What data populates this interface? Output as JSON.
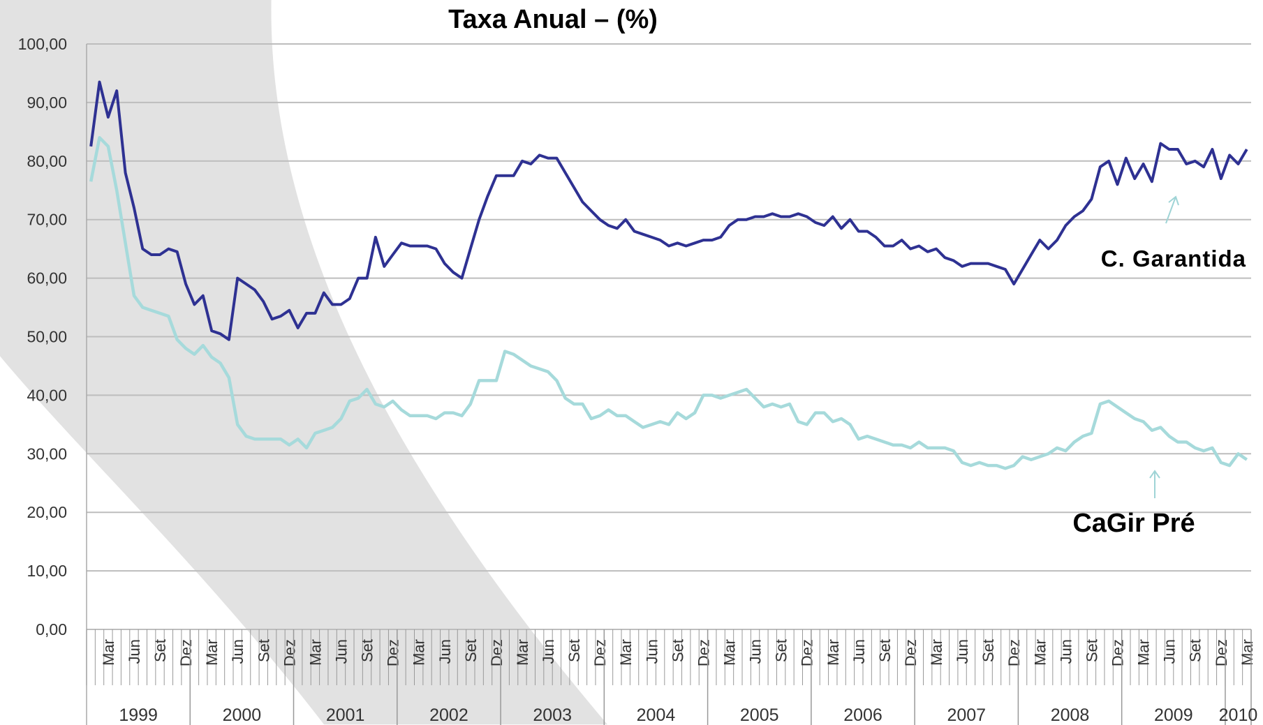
{
  "chart_data": {
    "type": "line",
    "title": "Taxa Anual  –  (%)",
    "categories": [
      null,
      null,
      "Mar",
      null,
      null,
      "Jun",
      null,
      null,
      "Set",
      null,
      null,
      "Dez",
      null,
      null,
      "Mar",
      null,
      null,
      "Jun",
      null,
      null,
      "Set",
      null,
      null,
      "Dez",
      null,
      null,
      "Mar",
      null,
      null,
      "Jun",
      null,
      null,
      "Set",
      null,
      null,
      "Dez",
      null,
      null,
      "Mar",
      null,
      null,
      "Jun",
      null,
      null,
      "Set",
      null,
      null,
      "Dez",
      null,
      null,
      "Mar",
      null,
      null,
      "Jun",
      null,
      null,
      "Set",
      null,
      null,
      "Dez",
      null,
      null,
      "Mar",
      null,
      null,
      "Jun",
      null,
      null,
      "Set",
      null,
      null,
      "Dez",
      null,
      null,
      "Mar",
      null,
      null,
      "Jun",
      null,
      null,
      "Set",
      null,
      null,
      "Dez",
      null,
      null,
      "Mar",
      null,
      null,
      "Jun",
      null,
      null,
      "Set",
      null,
      null,
      "Dez",
      null,
      null,
      "Mar",
      null,
      null,
      "Jun",
      null,
      null,
      "Set",
      null,
      null,
      "Dez",
      null,
      null,
      "Mar",
      null,
      null,
      "Jun",
      null,
      null,
      "Set",
      null,
      null,
      "Dez",
      null,
      null,
      "Mar",
      null,
      null,
      "Jun",
      null,
      null,
      "Set",
      null,
      null,
      "Dez",
      null,
      null,
      "Mar"
    ],
    "years": [
      "1999",
      "2000",
      "2001",
      "2002",
      "2003",
      "2004",
      "2005",
      "2006",
      "2007",
      "2008",
      "2009",
      "2010"
    ],
    "series": [
      {
        "name": "C. Garantida",
        "color": "#2e3192",
        "values": [
          82.5,
          93.5,
          87.5,
          92,
          78,
          72,
          65,
          64,
          64,
          65,
          64.5,
          59,
          55.5,
          57,
          51,
          50.5,
          49.5,
          60,
          59,
          58,
          56,
          53,
          53.5,
          54.5,
          51.5,
          54,
          54,
          57.5,
          55.5,
          55.5,
          56.5,
          60,
          60,
          67,
          62,
          64,
          66,
          65.5,
          65.5,
          65.5,
          65,
          62.5,
          61,
          60,
          65,
          70,
          74,
          77.5,
          77.5,
          77.5,
          80,
          79.5,
          81,
          80.5,
          80.5,
          78,
          75.5,
          73,
          71.5,
          70,
          69,
          68.5,
          70,
          68,
          67.5,
          67,
          66.5,
          65.5,
          66,
          65.5,
          66,
          66.5,
          66.5,
          67,
          69,
          70,
          70,
          70.5,
          70.5,
          71,
          70.5,
          70.5,
          71,
          70.5,
          69.5,
          69,
          70.5,
          68.5,
          70,
          68,
          68,
          67,
          65.5,
          65.5,
          66.5,
          65,
          65.5,
          64.5,
          65,
          63.5,
          63,
          62,
          62.5,
          62.5,
          62.5,
          62,
          61.5,
          59,
          61.5,
          64,
          66.5,
          65,
          66.5,
          69,
          70.5,
          71.5,
          73.5,
          79,
          80,
          76,
          80.5,
          77,
          79.5,
          76.5,
          83,
          82,
          82,
          79.5,
          80,
          79,
          82,
          77,
          81,
          79.5,
          82
        ]
      },
      {
        "name": "CaGir Pré",
        "color": "#a6dadb",
        "values": [
          76.5,
          84,
          82.5,
          75,
          66,
          57,
          55,
          54.5,
          54,
          53.5,
          49.5,
          48,
          47,
          48.5,
          46.5,
          45.5,
          43,
          35,
          33,
          32.5,
          32.5,
          32.5,
          32.5,
          31.5,
          32.5,
          31,
          33.5,
          34,
          34.5,
          36,
          39,
          39.5,
          41,
          38.5,
          38,
          39,
          37.5,
          36.5,
          36.5,
          36.5,
          36,
          37,
          37,
          36.5,
          38.5,
          42.5,
          42.5,
          42.5,
          47.5,
          47,
          46,
          45,
          44.5,
          44,
          42.5,
          39.5,
          38.5,
          38.5,
          36,
          36.5,
          37.5,
          36.5,
          36.5,
          35.5,
          34.5,
          35,
          35.5,
          35,
          37,
          36,
          37,
          40,
          40,
          39.5,
          40,
          40.5,
          41,
          39.5,
          38,
          38.5,
          38,
          38.5,
          35.5,
          35,
          37,
          37,
          35.5,
          36,
          35,
          32.5,
          33,
          32.5,
          32,
          31.5,
          31.5,
          31,
          32,
          31,
          31,
          31,
          30.5,
          28.5,
          28,
          28.5,
          28,
          28,
          27.5,
          28,
          29.5,
          29,
          29.5,
          30,
          31,
          30.5,
          32,
          33,
          33.5,
          38.5,
          39,
          38,
          37,
          36,
          35.5,
          34,
          34.5,
          33,
          32,
          32,
          31,
          30.5,
          31,
          28.5,
          28,
          30,
          29
        ]
      }
    ],
    "ylim": [
      0,
      100
    ],
    "yticks": [
      {
        "value": 0,
        "label": "0,00"
      },
      {
        "value": 10,
        "label": "10,00"
      },
      {
        "value": 20,
        "label": "20,00"
      },
      {
        "value": 30,
        "label": "30,00"
      },
      {
        "value": 40,
        "label": "40,00"
      },
      {
        "value": 50,
        "label": "50,00"
      },
      {
        "value": 60,
        "label": "60,00"
      },
      {
        "value": 70,
        "label": "70,00"
      },
      {
        "value": 80,
        "label": "80,00"
      },
      {
        "value": 90,
        "label": "90,00"
      },
      {
        "value": 100,
        "label": "100,00"
      }
    ],
    "grid": true
  }
}
